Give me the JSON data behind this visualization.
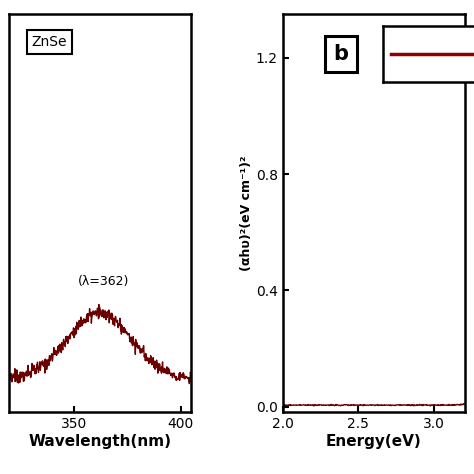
{
  "left_plot": {
    "xlabel": "Wavelength(nm)",
    "xlim": [
      320,
      405
    ],
    "x_ticks": [
      350,
      400
    ],
    "annotation": "(λ=362)",
    "label_box": "ZnSe",
    "line_color": "#6B0000",
    "line_width": 1.0
  },
  "right_plot": {
    "xlabel": "Energy(eV)",
    "ylabel": "(αhυ)²(eV cm⁻¹)²",
    "xlim": [
      2.0,
      3.2
    ],
    "ylim": [
      -0.02,
      1.35
    ],
    "x_ticks": [
      2.0,
      2.5,
      3.0
    ],
    "y_ticks": [
      0.0,
      0.4,
      0.8,
      1.2
    ],
    "label_box": "b",
    "line_color": "#6B0000",
    "line_width": 1.0,
    "legend_line_color": "#8B0000"
  },
  "background_color": "#ffffff",
  "axes_linewidth": 1.8,
  "tick_fontsize": 10,
  "label_fontsize": 11
}
